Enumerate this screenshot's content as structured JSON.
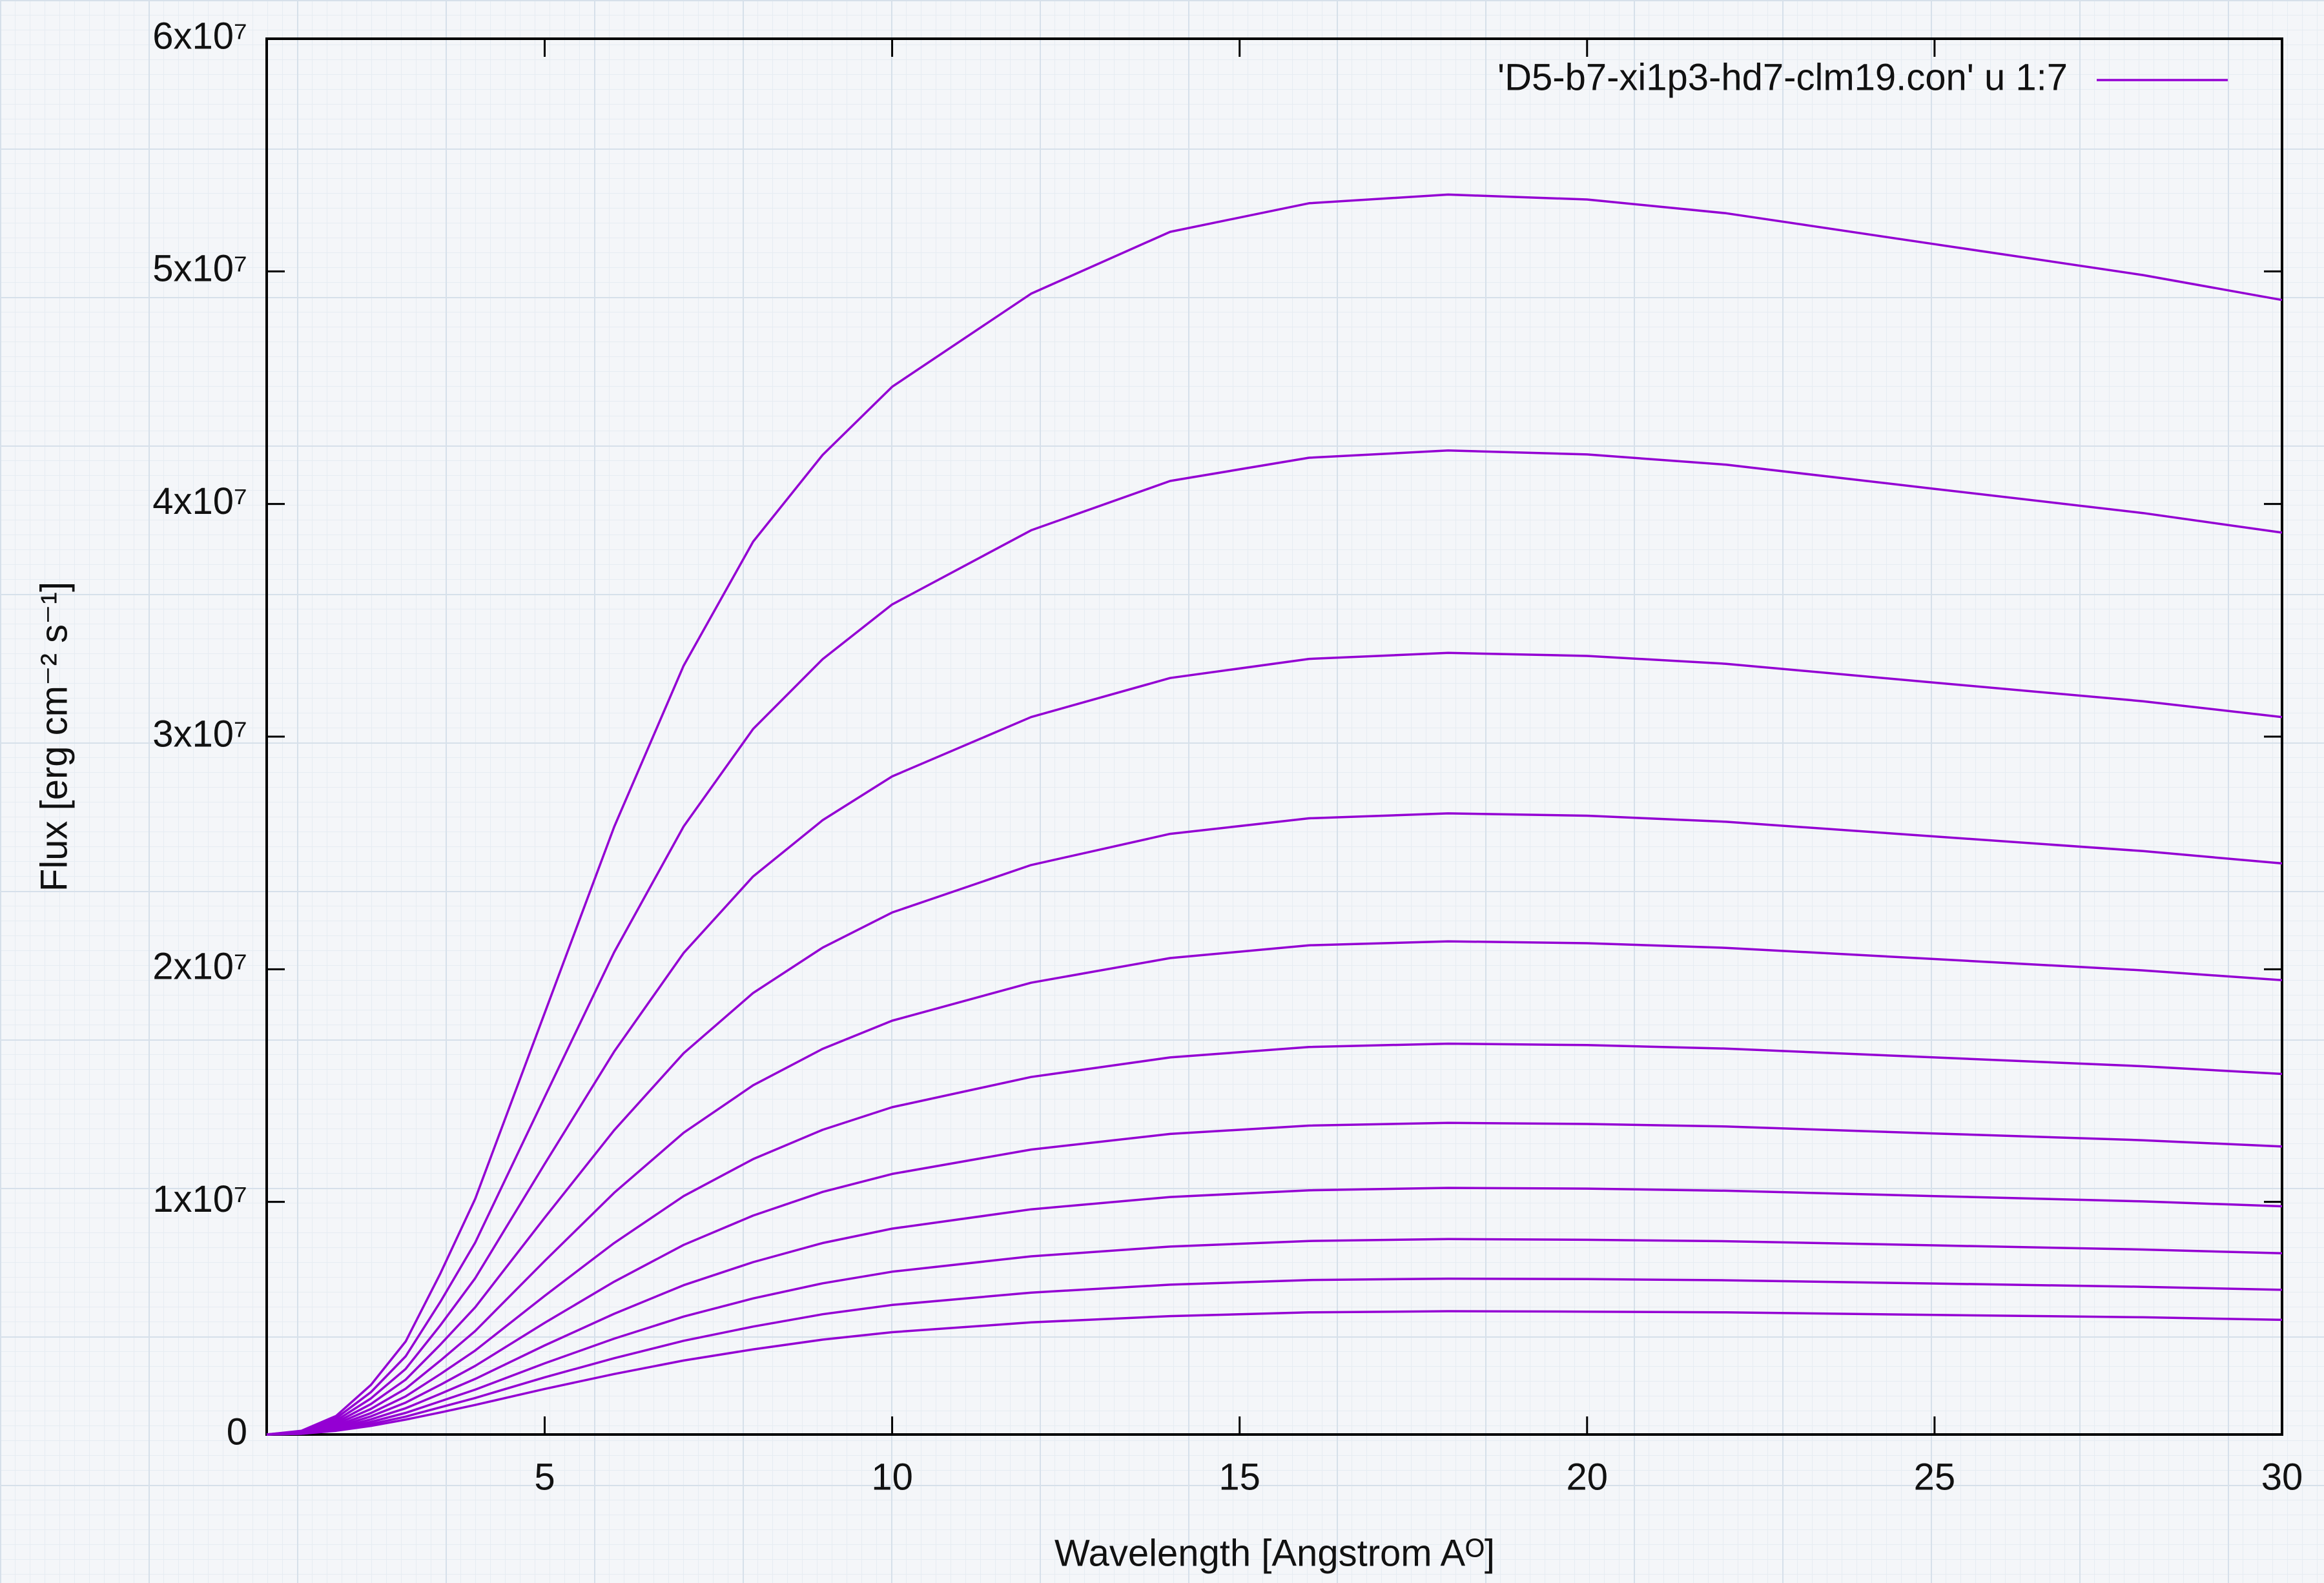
{
  "chart_data": {
    "type": "line",
    "xlabel": "Wavelength [Angstrom Aᴼ]",
    "ylabel": "Flux [erg cm⁻² s⁻¹]",
    "x": [
      1,
      1.5,
      2,
      2.5,
      3,
      3.5,
      4,
      5,
      6,
      7,
      8,
      9,
      10,
      12,
      14,
      16,
      18,
      20,
      22,
      25,
      28,
      30
    ],
    "series": [
      {
        "name": "'D5-b7-xi1p3-hd7-clm19.con' u 1:7",
        "color": "#9400d3",
        "values": [
          0,
          160000.0,
          800000.0,
          2130000.0,
          4000000.0,
          6930000.0,
          10130000.0,
          18120000.0,
          26120000.0,
          33050000.0,
          38380000.0,
          42110000.0,
          45040000.0,
          49040000.0,
          51700000.0,
          52930000.0,
          53300000.0,
          53090000.0,
          52500000.0,
          51170000.0,
          49840000.0,
          48770000.0
        ]
      },
      {
        "color": "#9400d3",
        "values": [
          0,
          140000.0,
          700000.0,
          1820000.0,
          3360000.0,
          5710000.0,
          8250000.0,
          14510000.0,
          20730000.0,
          26140000.0,
          30330000.0,
          33330000.0,
          35680000.0,
          38870000.0,
          40990000.0,
          41990000.0,
          42300000.0,
          42130000.0,
          41690000.0,
          40650000.0,
          39610000.0,
          38770000.0
        ]
      },
      {
        "color": "#9400d3",
        "values": [
          0,
          110000.0,
          600000.0,
          1550000.0,
          2820000.0,
          4700000.0,
          6720000.0,
          11630000.0,
          16460000.0,
          20700000.0,
          23990000.0,
          26410000.0,
          28290000.0,
          30840000.0,
          32520000.0,
          33340000.0,
          33600000.0,
          33470000.0,
          33130000.0,
          32320000.0,
          31520000.0,
          30840000.0
        ]
      },
      {
        "color": "#9400d3",
        "values": [
          0,
          100000.0,
          520000.0,
          1310000.0,
          2360000.0,
          3870000.0,
          5470000.0,
          9320000.0,
          13080000.0,
          16390000.0,
          18980000.0,
          20930000.0,
          22440000.0,
          24480000.0,
          25820000.0,
          26490000.0,
          26700000.0,
          26600000.0,
          26340000.0,
          25710000.0,
          25080000.0,
          24550000.0
        ]
      },
      {
        "color": "#9400d3",
        "values": [
          0,
          80000.0,
          450000.0,
          1100000.0,
          1970000.0,
          3180000.0,
          4450000.0,
          7460000.0,
          10390000.0,
          12970000.0,
          15010000.0,
          16580000.0,
          17790000.0,
          19420000.0,
          20480000.0,
          21030000.0,
          21200000.0,
          21120000.0,
          20920000.0,
          20440000.0,
          19950000.0,
          19530000.0
        ]
      },
      {
        "color": "#9400d3",
        "values": [
          0,
          70000.0,
          380000.0,
          920000.0,
          1640000.0,
          2600000.0,
          3610000.0,
          5960000.0,
          8230000.0,
          10250000.0,
          11840000.0,
          13100000.0,
          14070000.0,
          15370000.0,
          16210000.0,
          16660000.0,
          16800000.0,
          16740000.0,
          16590000.0,
          16210000.0,
          15830000.0,
          15500000.0
        ]
      },
      {
        "color": "#9400d3",
        "values": [
          0,
          60000.0,
          320000.0,
          780000.0,
          1370000.0,
          2140000.0,
          2950000.0,
          4800000.0,
          6570000.0,
          8150000.0,
          9410000.0,
          10430000.0,
          11200000.0,
          12250000.0,
          12920000.0,
          13280000.0,
          13400000.0,
          13350000.0,
          13240000.0,
          12940000.0,
          12650000.0,
          12380000.0
        ]
      },
      {
        "color": "#9400d3",
        "values": [
          0,
          50000.0,
          270000.0,
          650000.0,
          1130000.0,
          1750000.0,
          2390000.0,
          3830000.0,
          5190000.0,
          6420000.0,
          7410000.0,
          8230000.0,
          8850000.0,
          9680000.0,
          10210000.0,
          10500000.0,
          10600000.0,
          10570000.0,
          10480000.0,
          10250000.0,
          10020000.0,
          9810000.0
        ]
      },
      {
        "color": "#9400d3",
        "values": [
          0,
          40000.0,
          230000.0,
          540000.0,
          930000.0,
          1430000.0,
          1930000.0,
          3060000.0,
          4120000.0,
          5070000.0,
          5850000.0,
          6500000.0,
          7000000.0,
          7660000.0,
          8080000.0,
          8320000.0,
          8400000.0,
          8370000.0,
          8310000.0,
          8130000.0,
          7950000.0,
          7790000.0
        ]
      },
      {
        "color": "#9400d3",
        "values": [
          0,
          30000.0,
          190000.0,
          450000.0,
          770000.0,
          1170000.0,
          1570000.0,
          2460000.0,
          3280000.0,
          4030000.0,
          4640000.0,
          5170000.0,
          5570000.0,
          6100000.0,
          6440000.0,
          6640000.0,
          6700000.0,
          6680000.0,
          6630000.0,
          6490000.0,
          6350000.0,
          6220000.0
        ]
      },
      {
        "color": "#9400d3",
        "values": [
          0,
          30000.0,
          160000.0,
          370000.0,
          640000.0,
          950000.0,
          1270000.0,
          1960000.0,
          2600000.0,
          3180000.0,
          3660000.0,
          4080000.0,
          4400000.0,
          4820000.0,
          5090000.0,
          5250000.0,
          5300000.0,
          5280000.0,
          5250000.0,
          5140000.0,
          5040000.0,
          4930000.0
        ]
      }
    ],
    "xlim": [
      1,
      30
    ],
    "xticks": [
      5,
      10,
      15,
      20,
      25,
      30
    ],
    "ylim": [
      0,
      60000000
    ],
    "yticks": [
      0,
      {
        "value": 10000000,
        "label": "1x10⁷"
      },
      {
        "value": 20000000,
        "label": "2x10⁷"
      },
      {
        "value": 30000000,
        "label": "3x10⁷"
      },
      {
        "value": 40000000,
        "label": "4x10⁷"
      },
      {
        "value": 50000000,
        "label": "5x10⁷"
      },
      {
        "value": 60000000,
        "label": "6x10⁷"
      }
    ],
    "grid": false,
    "legend": "upper-right"
  }
}
